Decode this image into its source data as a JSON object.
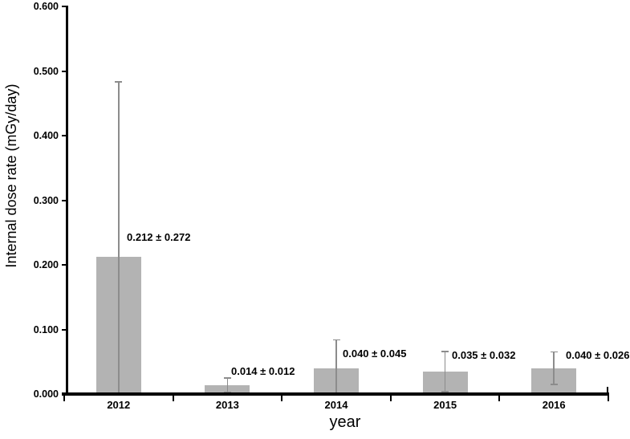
{
  "chart_data": {
    "type": "bar",
    "xlabel": "year",
    "ylabel": "Internal dose rate (mGy/day)",
    "categories": [
      "2012",
      "2013",
      "2014",
      "2015",
      "2016"
    ],
    "values": [
      0.212,
      0.014,
      0.04,
      0.035,
      0.04
    ],
    "errors": [
      0.272,
      0.012,
      0.045,
      0.032,
      0.026
    ],
    "point_labels": [
      "0.212 ± 0.272",
      "0.014 ± 0.012",
      "0.040 ± 0.045",
      "0.035 ± 0.032",
      "0.040 ± 0.026"
    ],
    "ylim": [
      0,
      0.6
    ],
    "ytick_step": 0.1,
    "ytick_labels": [
      "0.000",
      "0.100",
      "0.200",
      "0.300",
      "0.400",
      "0.500",
      "0.600"
    ],
    "grid": false,
    "legend": null,
    "error_bars_clipped_at_zero": true,
    "colors": {
      "bar_fill": "#b3b3b3",
      "error_bar": "#8c8c8c",
      "axis": "#000000",
      "text": "#000000",
      "background": "#ffffff"
    }
  }
}
